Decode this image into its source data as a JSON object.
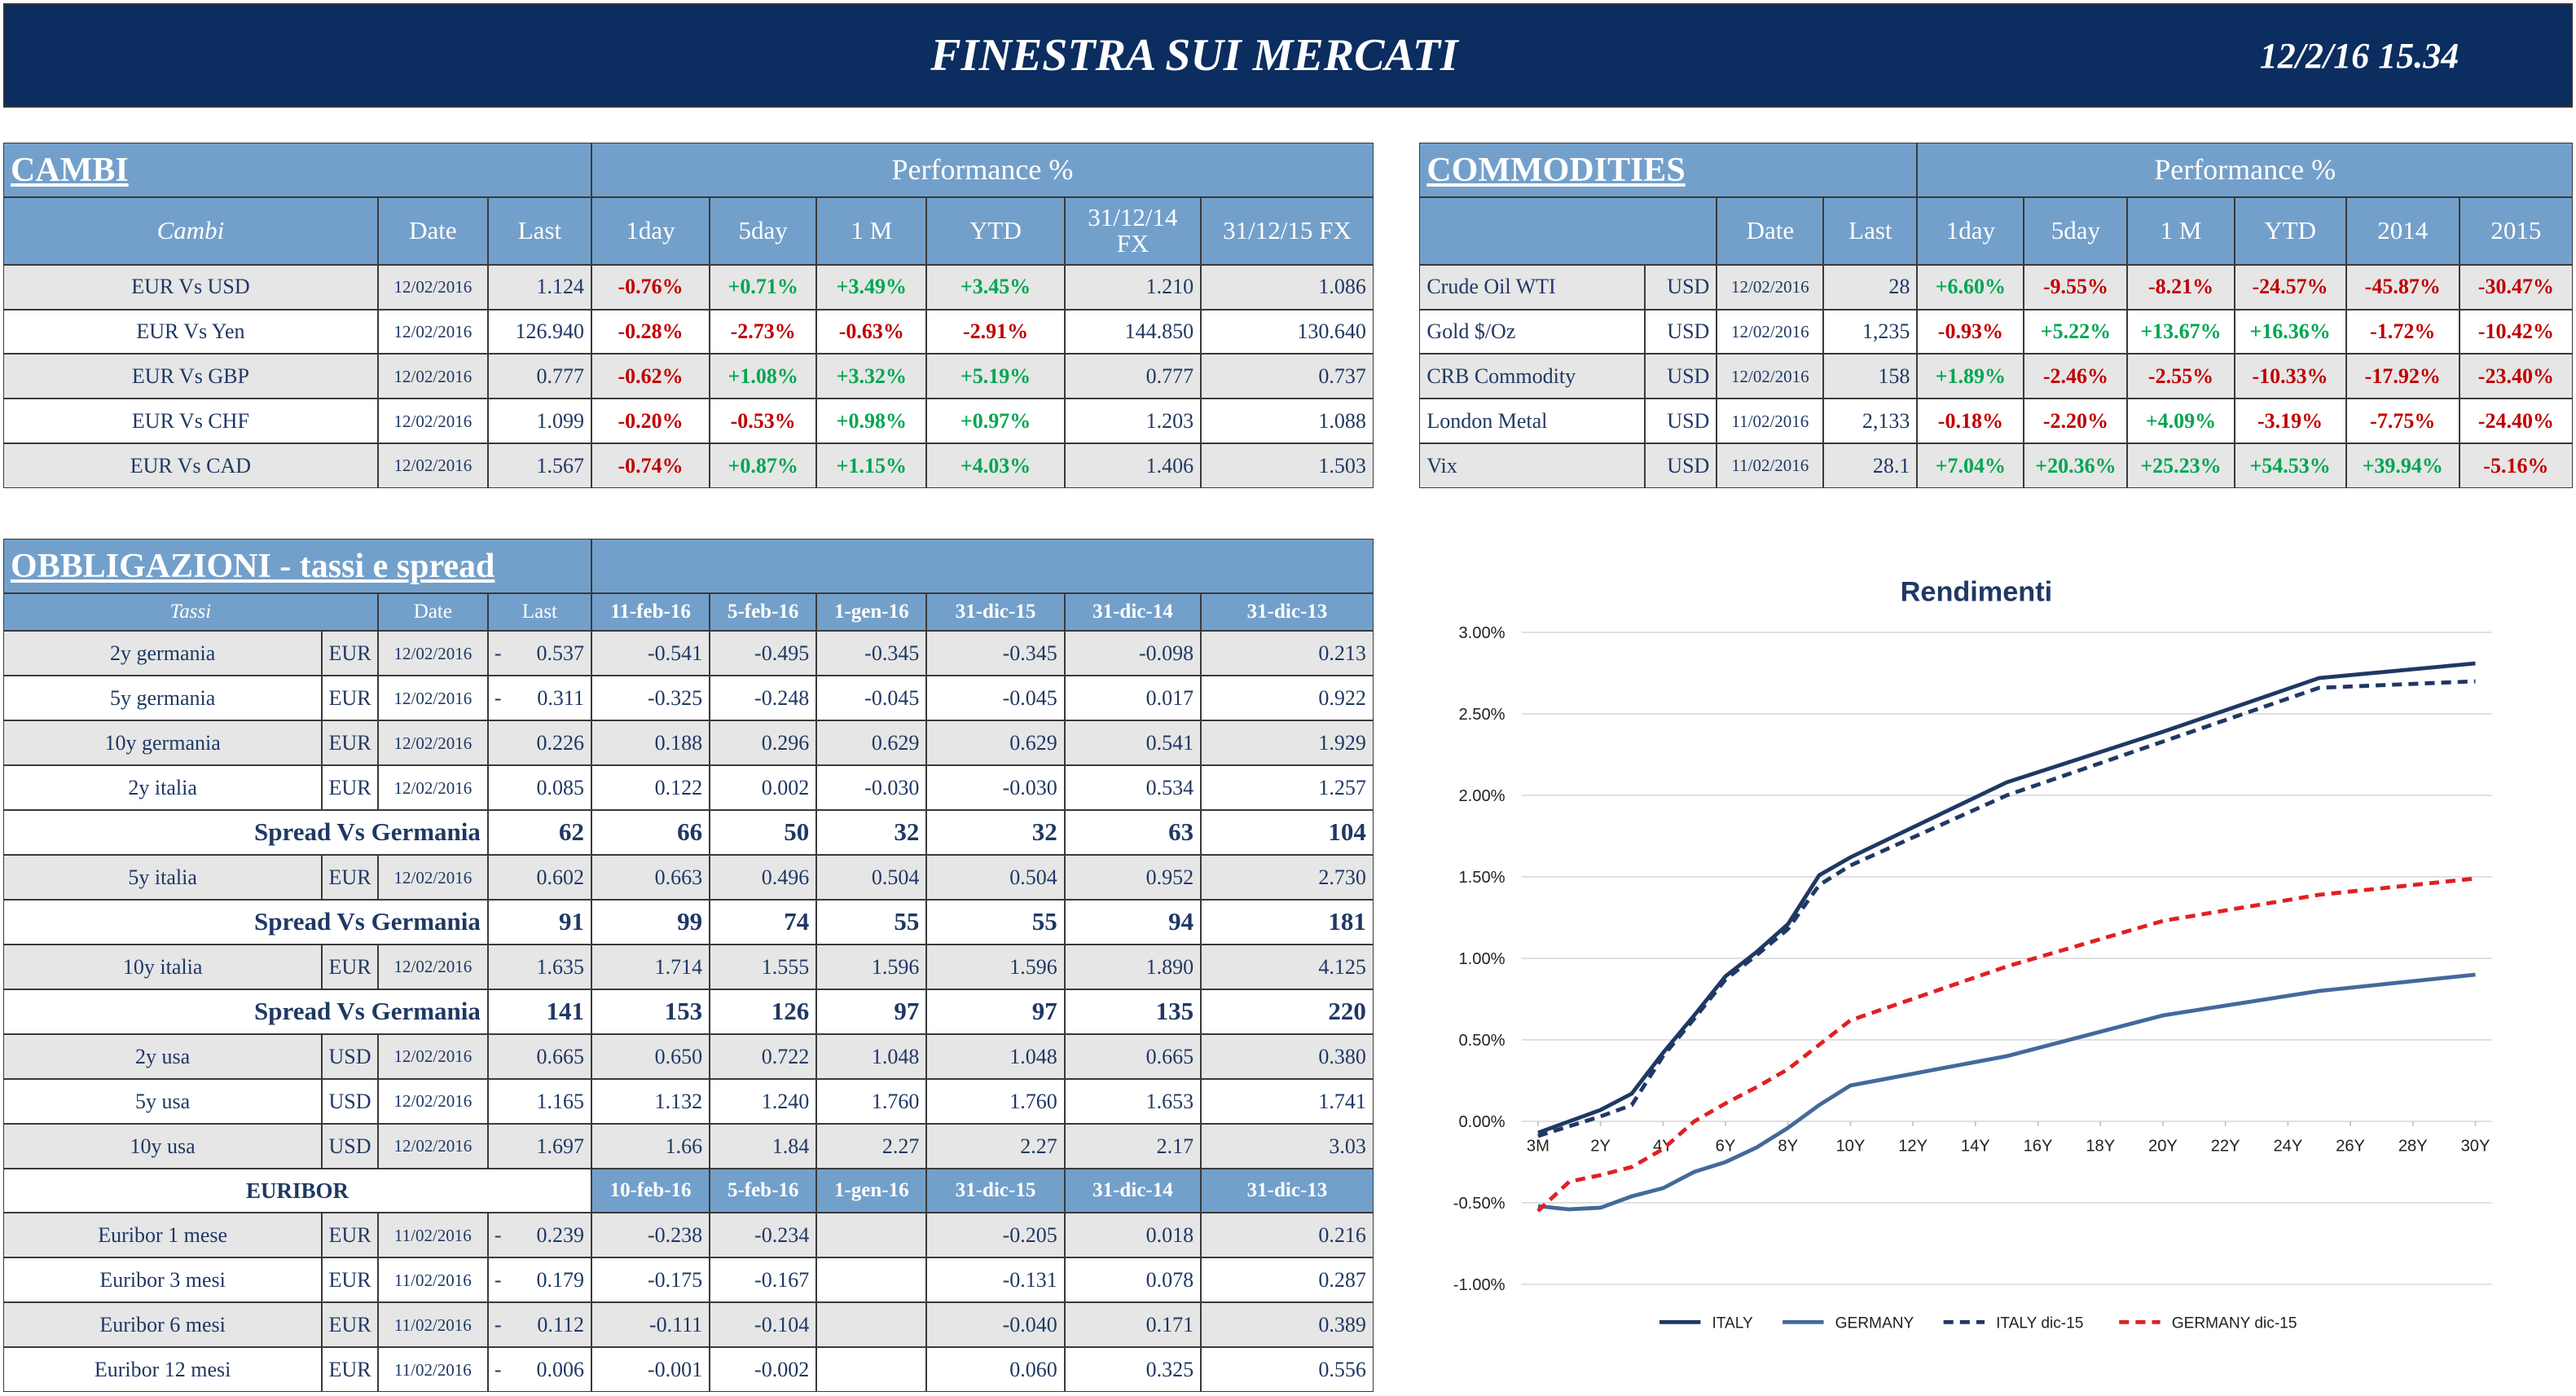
{
  "header": {
    "title": "FINESTRA SUI MERCATI",
    "datetime": "12/2/16 15.34"
  },
  "cambi": {
    "title": "CAMBI",
    "group": "Performance  %",
    "columns": [
      "Cambi",
      "Date",
      "Last",
      "1day",
      "5day",
      "1 M",
      "YTD",
      "31/12/14 FX",
      "31/12/15  FX"
    ],
    "rows": [
      [
        "EUR Vs USD",
        "12/02/2016",
        "1.124",
        "-0.76%",
        "+0.71%",
        "+3.49%",
        "+3.45%",
        "1.210",
        "1.086"
      ],
      [
        "EUR Vs Yen",
        "12/02/2016",
        "126.940",
        "-0.28%",
        "-2.73%",
        "-0.63%",
        "-2.91%",
        "144.850",
        "130.640"
      ],
      [
        "EUR Vs GBP",
        "12/02/2016",
        "0.777",
        "-0.62%",
        "+1.08%",
        "+3.32%",
        "+5.19%",
        "0.777",
        "0.737"
      ],
      [
        "EUR Vs CHF",
        "12/02/2016",
        "1.099",
        "-0.20%",
        "-0.53%",
        "+0.98%",
        "+0.97%",
        "1.203",
        "1.088"
      ],
      [
        "EUR Vs CAD",
        "12/02/2016",
        "1.567",
        "-0.74%",
        "+0.87%",
        "+1.15%",
        "+4.03%",
        "1.406",
        "1.503"
      ]
    ]
  },
  "commodities": {
    "title": "COMMODITIES",
    "group": "Performance  %",
    "columns": [
      "Date",
      "Last",
      "1day",
      "5day",
      "1 M",
      "YTD",
      "2014",
      "2015"
    ],
    "rows": [
      [
        "Crude Oil WTI",
        "USD",
        "12/02/2016",
        "28",
        "+6.60%",
        "-9.55%",
        "-8.21%",
        "-24.57%",
        "-45.87%",
        "-30.47%"
      ],
      [
        "Gold $/Oz",
        "USD",
        "12/02/2016",
        "1,235",
        "-0.93%",
        "+5.22%",
        "+13.67%",
        "+16.36%",
        "-1.72%",
        "-10.42%"
      ],
      [
        "CRB Commodity",
        "USD",
        "12/02/2016",
        "158",
        "+1.89%",
        "-2.46%",
        "-2.55%",
        "-10.33%",
        "-17.92%",
        "-23.40%"
      ],
      [
        "London Metal",
        "USD",
        "11/02/2016",
        "2,133",
        "-0.18%",
        "-2.20%",
        "+4.09%",
        "-3.19%",
        "-7.75%",
        "-24.40%"
      ],
      [
        "Vix",
        "USD",
        "11/02/2016",
        "28.1",
        "+7.04%",
        "+20.36%",
        "+25.23%",
        "+54.53%",
        "+39.94%",
        "-5.16%"
      ]
    ]
  },
  "obbligazioni": {
    "title": "OBBLIGAZIONI - tassi e spread",
    "columns": [
      "Tassi",
      "Date",
      "Last",
      "11-feb-16",
      "5-feb-16",
      "1-gen-16",
      "31-dic-15",
      "31-dic-14",
      "31-dic-13"
    ],
    "rows": [
      {
        "name": "2y germania",
        "currency": "EUR",
        "date": "12/02/2016",
        "flag": "-",
        "values": [
          "0.537",
          "-0.541",
          "-0.495",
          "-0.345",
          "-0.345",
          "-0.098",
          "0.213"
        ]
      },
      {
        "name": "5y germania",
        "currency": "EUR",
        "date": "12/02/2016",
        "flag": "-",
        "values": [
          "0.311",
          "-0.325",
          "-0.248",
          "-0.045",
          "-0.045",
          "0.017",
          "0.922"
        ]
      },
      {
        "name": "10y germania",
        "currency": "EUR",
        "date": "12/02/2016",
        "values": [
          "0.226",
          "0.188",
          "0.296",
          "0.629",
          "0.629",
          "0.541",
          "1.929"
        ]
      },
      {
        "name": "2y italia",
        "currency": "EUR",
        "date": "12/02/2016",
        "values": [
          "0.085",
          "0.122",
          "0.002",
          "-0.030",
          "-0.030",
          "0.534",
          "1.257"
        ]
      },
      {
        "label": "Spread Vs Germania",
        "values": [
          "62",
          "66",
          "50",
          "32",
          "32",
          "63",
          "104"
        ]
      },
      {
        "name": "5y italia",
        "currency": "EUR",
        "date": "12/02/2016",
        "values": [
          "0.602",
          "0.663",
          "0.496",
          "0.504",
          "0.504",
          "0.952",
          "2.730"
        ]
      },
      {
        "label": "Spread Vs Germania",
        "values": [
          "91",
          "99",
          "74",
          "55",
          "55",
          "94",
          "181"
        ]
      },
      {
        "name": "10y italia",
        "currency": "EUR",
        "date": "12/02/2016",
        "values": [
          "1.635",
          "1.714",
          "1.555",
          "1.596",
          "1.596",
          "1.890",
          "4.125"
        ]
      },
      {
        "label": "Spread Vs Germania",
        "values": [
          "141",
          "153",
          "126",
          "97",
          "97",
          "135",
          "220"
        ]
      },
      {
        "name": "2y usa",
        "currency": "USD",
        "date": "12/02/2016",
        "values": [
          "0.665",
          "0.650",
          "0.722",
          "1.048",
          "1.048",
          "0.665",
          "0.380"
        ]
      },
      {
        "name": "5y usa",
        "currency": "USD",
        "date": "12/02/2016",
        "values": [
          "1.165",
          "1.132",
          "1.240",
          "1.760",
          "1.760",
          "1.653",
          "1.741"
        ]
      },
      {
        "name": "10y usa",
        "currency": "USD",
        "date": "12/02/2016",
        "values": [
          "1.697",
          "1.66",
          "1.84",
          "2.27",
          "2.27",
          "2.17",
          "3.03"
        ]
      }
    ]
  },
  "euribor": {
    "title": "EURIBOR",
    "columns": [
      "10-feb-16",
      "5-feb-16",
      "1-gen-16",
      "31-dic-15",
      "31-dic-14",
      "31-dic-13"
    ],
    "rows": [
      {
        "name": "Euribor 1 mese",
        "currency": "EUR",
        "date": "11/02/2016",
        "flag": "-",
        "values": [
          "0.239",
          "-0.238",
          "-0.234",
          null,
          "-0.205",
          "0.018",
          "0.216"
        ]
      },
      {
        "name": "Euribor 3 mesi",
        "currency": "EUR",
        "date": "11/02/2016",
        "flag": "-",
        "values": [
          "0.179",
          "-0.175",
          "-0.167",
          null,
          "-0.131",
          "0.078",
          "0.287"
        ]
      },
      {
        "name": "Euribor 6 mesi",
        "currency": "EUR",
        "date": "11/02/2016",
        "flag": "-",
        "values": [
          "0.112",
          "-0.111",
          "-0.104",
          null,
          "-0.040",
          "0.171",
          "0.389"
        ]
      },
      {
        "name": "Euribor 12 mesi",
        "currency": "EUR",
        "date": "11/02/2016",
        "flag": "-",
        "values": [
          "0.006",
          "-0.001",
          "-0.002",
          null,
          "0.060",
          "0.325",
          "0.556"
        ]
      }
    ]
  },
  "chart_data": {
    "type": "line",
    "title": "Rendimenti",
    "x": [
      0,
      1,
      2,
      3,
      4,
      5,
      6,
      7,
      8,
      9,
      10,
      15,
      20,
      25,
      30
    ],
    "xlim": [
      0,
      30
    ],
    "xticks": [
      {
        "value": 0,
        "label": "3M"
      },
      {
        "value": 2,
        "label": "2Y"
      },
      {
        "value": 4,
        "label": "4Y"
      },
      {
        "value": 6,
        "label": "6Y"
      },
      {
        "value": 8,
        "label": "8Y"
      },
      {
        "value": 10,
        "label": "10Y"
      },
      {
        "value": 12,
        "label": "12Y"
      },
      {
        "value": 14,
        "label": "14Y"
      },
      {
        "value": 16,
        "label": "16Y"
      },
      {
        "value": 18,
        "label": "18Y"
      },
      {
        "value": 20,
        "label": "20Y"
      },
      {
        "value": 22,
        "label": "22Y"
      },
      {
        "value": 24,
        "label": "24Y"
      },
      {
        "value": 26,
        "label": "26Y"
      },
      {
        "value": 28,
        "label": "28Y"
      },
      {
        "value": 30,
        "label": "30Y"
      }
    ],
    "ylim": [
      -1,
      3
    ],
    "yticks": [
      {
        "value": -1,
        "label": "-1.00%"
      },
      {
        "value": -0.5,
        "label": "-0.50%"
      },
      {
        "value": 0,
        "label": "0.00%"
      },
      {
        "value": 0.5,
        "label": "0.50%"
      },
      {
        "value": 1,
        "label": "1.00%"
      },
      {
        "value": 1.5,
        "label": "1.50%"
      },
      {
        "value": 2,
        "label": "2.00%"
      },
      {
        "value": 2.5,
        "label": "2.50%"
      },
      {
        "value": 3,
        "label": "3.00%"
      }
    ],
    "grid": true,
    "series": [
      {
        "name": "ITALY",
        "color": "#1f3864",
        "style": "solid",
        "values": [
          -0.07,
          0.0,
          0.07,
          0.17,
          0.42,
          0.65,
          0.89,
          1.04,
          1.21,
          1.51,
          1.62,
          2.08,
          2.39,
          2.72,
          2.81
        ]
      },
      {
        "name": "GERMANY",
        "color": "#44699b",
        "style": "solid",
        "values": [
          -0.52,
          -0.54,
          -0.53,
          -0.46,
          -0.41,
          -0.31,
          -0.25,
          -0.16,
          -0.04,
          0.1,
          0.22,
          0.4,
          0.65,
          0.8,
          0.9
        ]
      },
      {
        "name": "ITALY dic-15",
        "color": "#1f3864",
        "style": "dashed",
        "values": [
          -0.09,
          -0.03,
          0.03,
          0.1,
          0.4,
          0.63,
          0.87,
          1.02,
          1.18,
          1.45,
          1.57,
          2.0,
          2.33,
          2.66,
          2.7
        ]
      },
      {
        "name": "GERMANY dic-15",
        "color": "#e02020",
        "style": "dashed",
        "values": [
          -0.55,
          -0.37,
          -0.33,
          -0.28,
          -0.17,
          0.0,
          0.11,
          0.21,
          0.32,
          0.47,
          0.62,
          0.95,
          1.23,
          1.39,
          1.49
        ]
      }
    ]
  }
}
